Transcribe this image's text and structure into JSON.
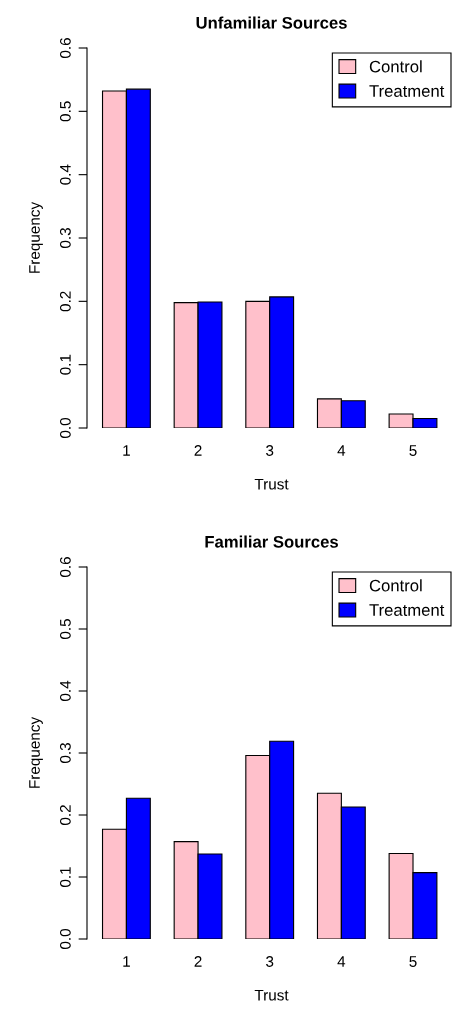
{
  "chart_data": [
    {
      "type": "bar",
      "title": "Unfamiliar Sources",
      "xlabel": "Trust",
      "ylabel": "Frequency",
      "categories": [
        "1",
        "2",
        "3",
        "4",
        "5"
      ],
      "series": [
        {
          "name": "Control",
          "color": "#ffc0cb",
          "values": [
            0.532,
            0.198,
            0.2,
            0.046,
            0.022
          ]
        },
        {
          "name": "Treatment",
          "color": "#0000ff",
          "values": [
            0.535,
            0.199,
            0.207,
            0.043,
            0.015
          ]
        }
      ],
      "ylim": [
        0,
        0.6
      ],
      "yticks": [
        {
          "value": 0,
          "label": "0.0"
        },
        0.1,
        0.2,
        0.3,
        0.4,
        0.5,
        0.6
      ],
      "legend": "top right"
    },
    {
      "type": "bar",
      "title": "Familiar Sources",
      "xlabel": "Trust",
      "ylabel": "Frequency",
      "categories": [
        "1",
        "2",
        "3",
        "4",
        "5"
      ],
      "series": [
        {
          "name": "Control",
          "color": "#ffc0cb",
          "values": [
            0.177,
            0.157,
            0.296,
            0.235,
            0.138
          ]
        },
        {
          "name": "Treatment",
          "color": "#0000ff",
          "values": [
            0.227,
            0.137,
            0.319,
            0.213,
            0.107
          ]
        }
      ],
      "ylim": [
        0,
        0.6
      ],
      "yticks": [
        {
          "value": 0,
          "label": "0.0"
        },
        0.1,
        0.2,
        0.3,
        0.4,
        0.5,
        0.6
      ],
      "legend": "top right"
    }
  ]
}
